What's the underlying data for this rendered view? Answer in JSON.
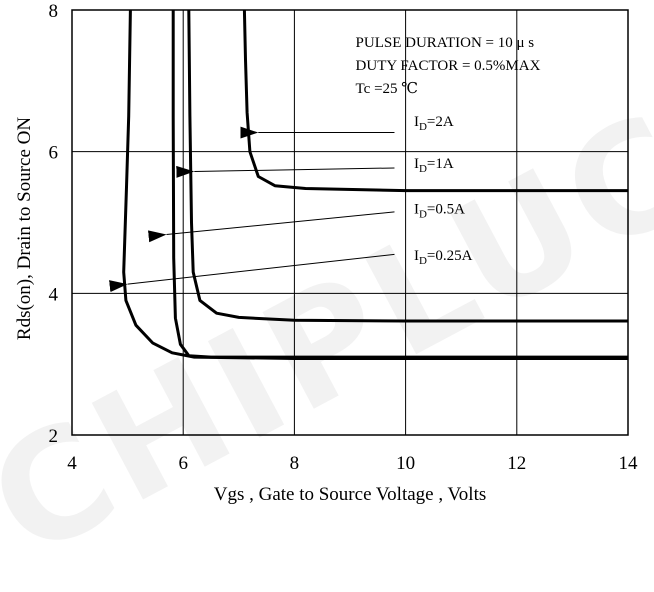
{
  "watermark": "CHIPLUCK",
  "chart_data": {
    "type": "line",
    "xlabel": "Vgs , Gate to Source Voltage , Volts",
    "ylabel": "Rds(on), Drain to Source ON",
    "xlim": [
      4,
      14
    ],
    "ylim": [
      2,
      8
    ],
    "xticks": [
      "4",
      "6",
      "8",
      "10",
      "12",
      "14"
    ],
    "yticks": [
      "2",
      "4",
      "6",
      "8"
    ],
    "grid": true,
    "notes": [
      "PULSE    DURATION = 10 μ s",
      "DUTY    FACTOR = 0.5%MAX",
      "Tc =25  ℃"
    ],
    "series": [
      {
        "name": "ID=2A",
        "label_main": "I",
        "label_sub": "D",
        "label_rest": "=2A",
        "points": [
          [
            7.1,
            8.0
          ],
          [
            7.12,
            7.3
          ],
          [
            7.15,
            6.55
          ],
          [
            7.2,
            6.0
          ],
          [
            7.35,
            5.65
          ],
          [
            7.65,
            5.52
          ],
          [
            8.2,
            5.48
          ],
          [
            10,
            5.45
          ],
          [
            14,
            5.45
          ]
        ],
        "arrow_from": [
          9.8,
          6.27
        ],
        "arrow_to": [
          7.35,
          6.27
        ]
      },
      {
        "name": "ID=1A",
        "label_main": "I",
        "label_sub": "D",
        "label_rest": "=1A",
        "points": [
          [
            6.1,
            8.0
          ],
          [
            6.12,
            6.5
          ],
          [
            6.15,
            5.0
          ],
          [
            6.18,
            4.3
          ],
          [
            6.3,
            3.9
          ],
          [
            6.6,
            3.72
          ],
          [
            7.0,
            3.66
          ],
          [
            8,
            3.62
          ],
          [
            10,
            3.61
          ],
          [
            14,
            3.61
          ]
        ],
        "arrow_from": [
          9.8,
          5.77
        ],
        "arrow_to": [
          6.2,
          5.72
        ]
      },
      {
        "name": "ID=0.5A",
        "label_main": "I",
        "label_sub": "D",
        "label_rest": "=0.5A",
        "points": [
          [
            5.82,
            8.0
          ],
          [
            5.82,
            6.5
          ],
          [
            5.83,
            4.5
          ],
          [
            5.86,
            3.65
          ],
          [
            5.95,
            3.28
          ],
          [
            6.1,
            3.12
          ],
          [
            6.5,
            3.1
          ],
          [
            8,
            3.1
          ],
          [
            14,
            3.1
          ]
        ],
        "arrow_from": [
          9.8,
          5.15
        ],
        "arrow_to": [
          5.7,
          4.83
        ]
      },
      {
        "name": "ID=0.25A",
        "label_main": "I",
        "label_sub": "D",
        "label_rest": "=0.25A",
        "points": [
          [
            5.05,
            8.0
          ],
          [
            5.02,
            6.5
          ],
          [
            4.98,
            5.5
          ],
          [
            4.93,
            4.3
          ],
          [
            4.97,
            3.9
          ],
          [
            5.15,
            3.55
          ],
          [
            5.45,
            3.3
          ],
          [
            5.8,
            3.16
          ],
          [
            6.2,
            3.1
          ],
          [
            8,
            3.08
          ],
          [
            14,
            3.08
          ]
        ],
        "arrow_from": [
          9.8,
          4.55
        ],
        "arrow_to": [
          5.0,
          4.13
        ]
      }
    ],
    "label_positions": [
      [
        10.15,
        6.36
      ],
      [
        10.15,
        5.77
      ],
      [
        10.15,
        5.13
      ],
      [
        10.15,
        4.47
      ]
    ]
  }
}
